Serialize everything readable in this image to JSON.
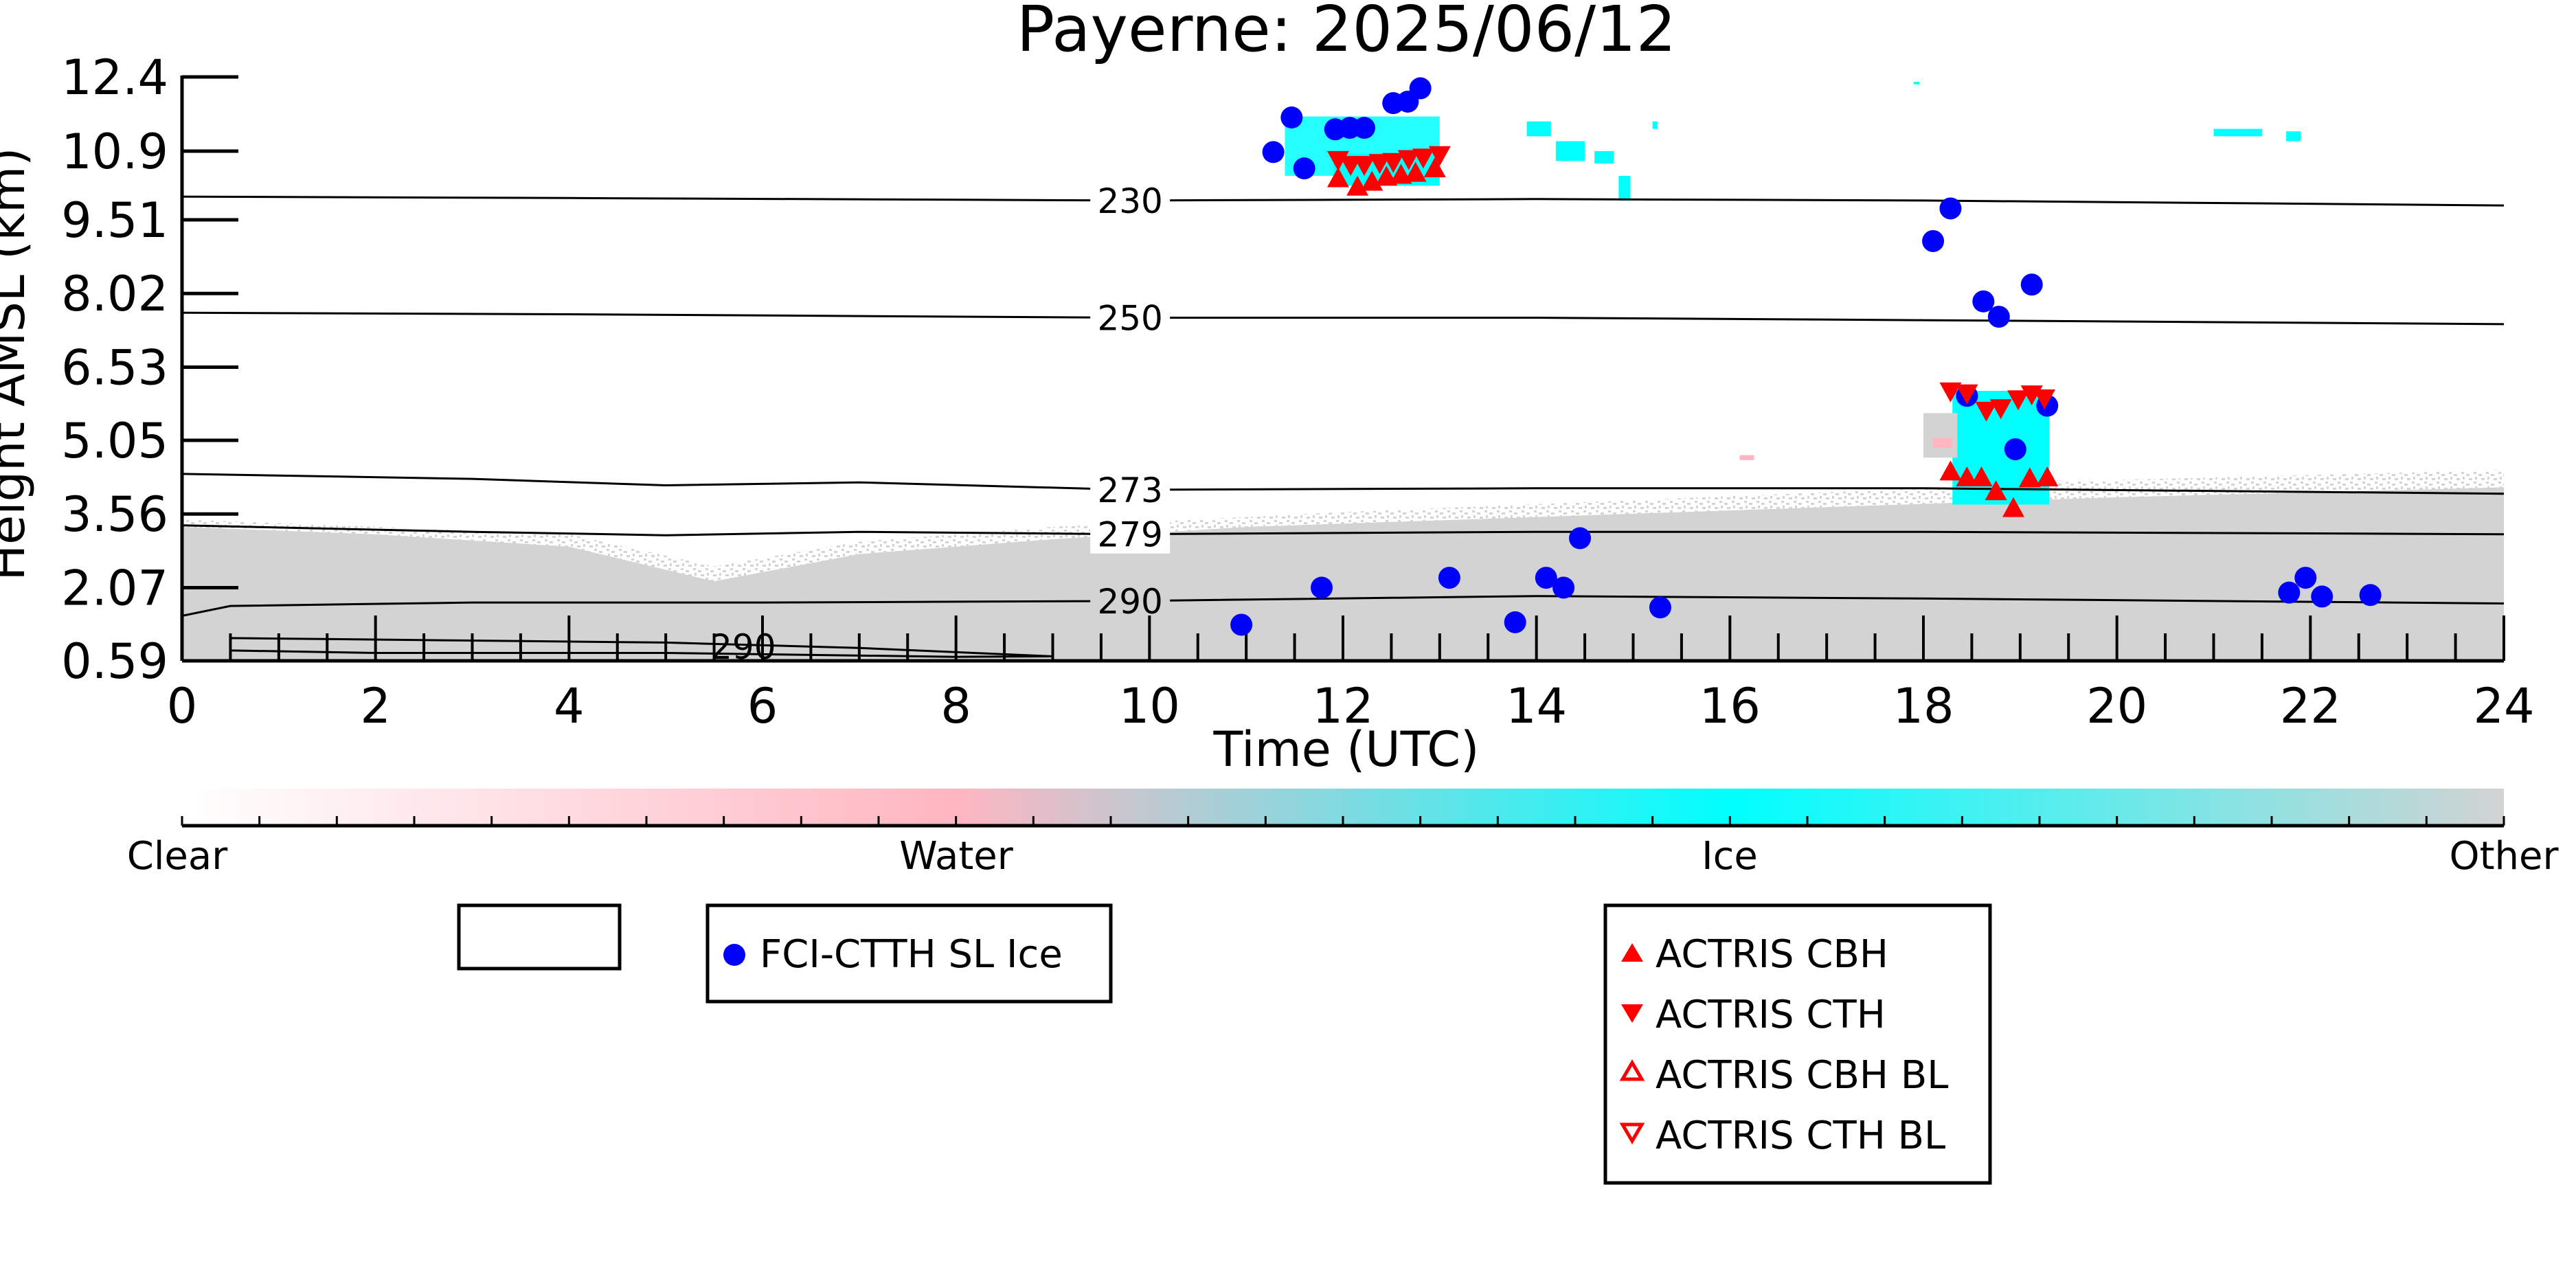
{
  "chart_data": {
    "type": "scatter",
    "title": "Payerne: 2025/06/12",
    "xlabel": "Time (UTC)",
    "ylabel": "Height AMSL (km)",
    "xlim": [
      0,
      24
    ],
    "ylim": [
      0.59,
      12.4
    ],
    "x_ticks": [
      "0",
      "2",
      "4",
      "6",
      "8",
      "10",
      "12",
      "14",
      "16",
      "18",
      "20",
      "22",
      "24"
    ],
    "y_ticks": [
      "0.59",
      "2.07",
      "3.56",
      "5.05",
      "6.53",
      "8.02",
      "9.51",
      "10.9",
      "12.4"
    ],
    "y_tick_values": [
      0.59,
      2.07,
      3.56,
      5.05,
      6.53,
      8.02,
      9.51,
      10.9,
      12.4
    ],
    "colorbar": {
      "labels": [
        "Clear",
        "Water",
        "Ice",
        "Other"
      ],
      "colors": [
        "#ffffff",
        "#ffb6c1",
        "#00ffff",
        "#d3d3d3"
      ]
    },
    "temperature_contours": [
      {
        "label": "230",
        "points": [
          [
            0,
            9.98
          ],
          [
            4,
            9.95
          ],
          [
            9.8,
            9.9
          ],
          [
            14,
            9.93
          ],
          [
            18,
            9.9
          ],
          [
            24,
            9.8
          ]
        ]
      },
      {
        "label": "250",
        "points": [
          [
            0,
            7.63
          ],
          [
            4,
            7.6
          ],
          [
            9.8,
            7.53
          ],
          [
            14,
            7.53
          ],
          [
            18,
            7.48
          ],
          [
            24,
            7.4
          ]
        ]
      },
      {
        "label": "273",
        "points": [
          [
            0,
            4.37
          ],
          [
            3,
            4.27
          ],
          [
            5,
            4.14
          ],
          [
            7,
            4.2
          ],
          [
            9.8,
            4.05
          ],
          [
            14,
            4.08
          ],
          [
            18,
            4.08
          ],
          [
            24,
            3.97
          ]
        ]
      },
      {
        "label": "279",
        "points": [
          [
            0,
            3.33
          ],
          [
            3,
            3.2
          ],
          [
            5,
            3.13
          ],
          [
            7,
            3.2
          ],
          [
            9.8,
            3.15
          ],
          [
            14,
            3.2
          ],
          [
            18,
            3.2
          ],
          [
            24,
            3.15
          ]
        ]
      },
      {
        "label": "290",
        "points": [
          [
            0,
            1.5
          ],
          [
            0.5,
            1.7
          ],
          [
            3,
            1.77
          ],
          [
            6,
            1.77
          ],
          [
            9.8,
            1.8
          ],
          [
            14,
            1.9
          ],
          [
            18,
            1.85
          ],
          [
            24,
            1.75
          ]
        ]
      },
      {
        "label": "290",
        "points": [
          [
            0.5,
            1.05
          ],
          [
            3,
            1.0
          ],
          [
            5,
            0.96
          ],
          [
            7,
            0.85
          ],
          [
            9,
            0.68
          ],
          [
            8,
            0.67
          ],
          [
            5,
            0.75
          ],
          [
            2,
            0.75
          ],
          [
            0.5,
            0.8
          ],
          [
            0.5,
            1.05
          ]
        ]
      }
    ],
    "series": [
      {
        "name": "FCI-CTTH SL Ice",
        "color": "#0000ff",
        "marker": "circle",
        "points": [
          [
            10.95,
            1.32
          ],
          [
            11.28,
            10.88
          ],
          [
            11.47,
            11.58
          ],
          [
            11.6,
            10.55
          ],
          [
            11.78,
            2.07
          ],
          [
            11.92,
            11.34
          ],
          [
            12.07,
            11.37
          ],
          [
            12.22,
            11.37
          ],
          [
            12.52,
            11.87
          ],
          [
            12.67,
            11.9
          ],
          [
            12.8,
            12.17
          ],
          [
            13.1,
            2.27
          ],
          [
            13.78,
            1.37
          ],
          [
            14.1,
            2.27
          ],
          [
            14.28,
            2.07
          ],
          [
            14.45,
            3.07
          ],
          [
            15.28,
            1.67
          ],
          [
            18.1,
            9.08
          ],
          [
            18.28,
            9.74
          ],
          [
            18.45,
            5.95
          ],
          [
            18.62,
            7.86
          ],
          [
            18.78,
            7.55
          ],
          [
            18.95,
            4.87
          ],
          [
            19.12,
            8.2
          ],
          [
            19.28,
            5.75
          ],
          [
            21.78,
            1.97
          ],
          [
            21.95,
            2.27
          ],
          [
            22.12,
            1.89
          ],
          [
            22.62,
            1.92
          ]
        ]
      },
      {
        "name": "ACTRIS CBH",
        "color": "#ff0000",
        "marker": "triangle-up",
        "points": [
          [
            11.95,
            10.35
          ],
          [
            12.15,
            10.18
          ],
          [
            12.3,
            10.28
          ],
          [
            12.45,
            10.38
          ],
          [
            12.6,
            10.42
          ],
          [
            12.75,
            10.46
          ],
          [
            12.95,
            10.55
          ],
          [
            18.28,
            4.42
          ],
          [
            18.45,
            4.3
          ],
          [
            18.6,
            4.3
          ],
          [
            18.75,
            4.02
          ],
          [
            18.93,
            3.68
          ],
          [
            19.1,
            4.28
          ],
          [
            19.28,
            4.3
          ]
        ]
      },
      {
        "name": "ACTRIS CTH",
        "color": "#ff0000",
        "marker": "triangle-down",
        "points": [
          [
            11.95,
            10.72
          ],
          [
            12.08,
            10.62
          ],
          [
            12.22,
            10.62
          ],
          [
            12.38,
            10.66
          ],
          [
            12.52,
            10.68
          ],
          [
            12.68,
            10.74
          ],
          [
            12.83,
            10.77
          ],
          [
            13.0,
            10.82
          ],
          [
            18.28,
            6.04
          ],
          [
            18.45,
            6.0
          ],
          [
            18.65,
            5.65
          ],
          [
            18.8,
            5.7
          ],
          [
            18.98,
            5.88
          ],
          [
            19.12,
            5.98
          ],
          [
            19.25,
            5.9
          ]
        ]
      }
    ],
    "legend": {
      "box1": [],
      "box2": [
        "FCI-CTTH SL Ice"
      ],
      "box3": [
        "ACTRIS CBH",
        "ACTRIS CTH",
        "ACTRIS CBH BL",
        "ACTRIS CTH BL"
      ]
    }
  }
}
